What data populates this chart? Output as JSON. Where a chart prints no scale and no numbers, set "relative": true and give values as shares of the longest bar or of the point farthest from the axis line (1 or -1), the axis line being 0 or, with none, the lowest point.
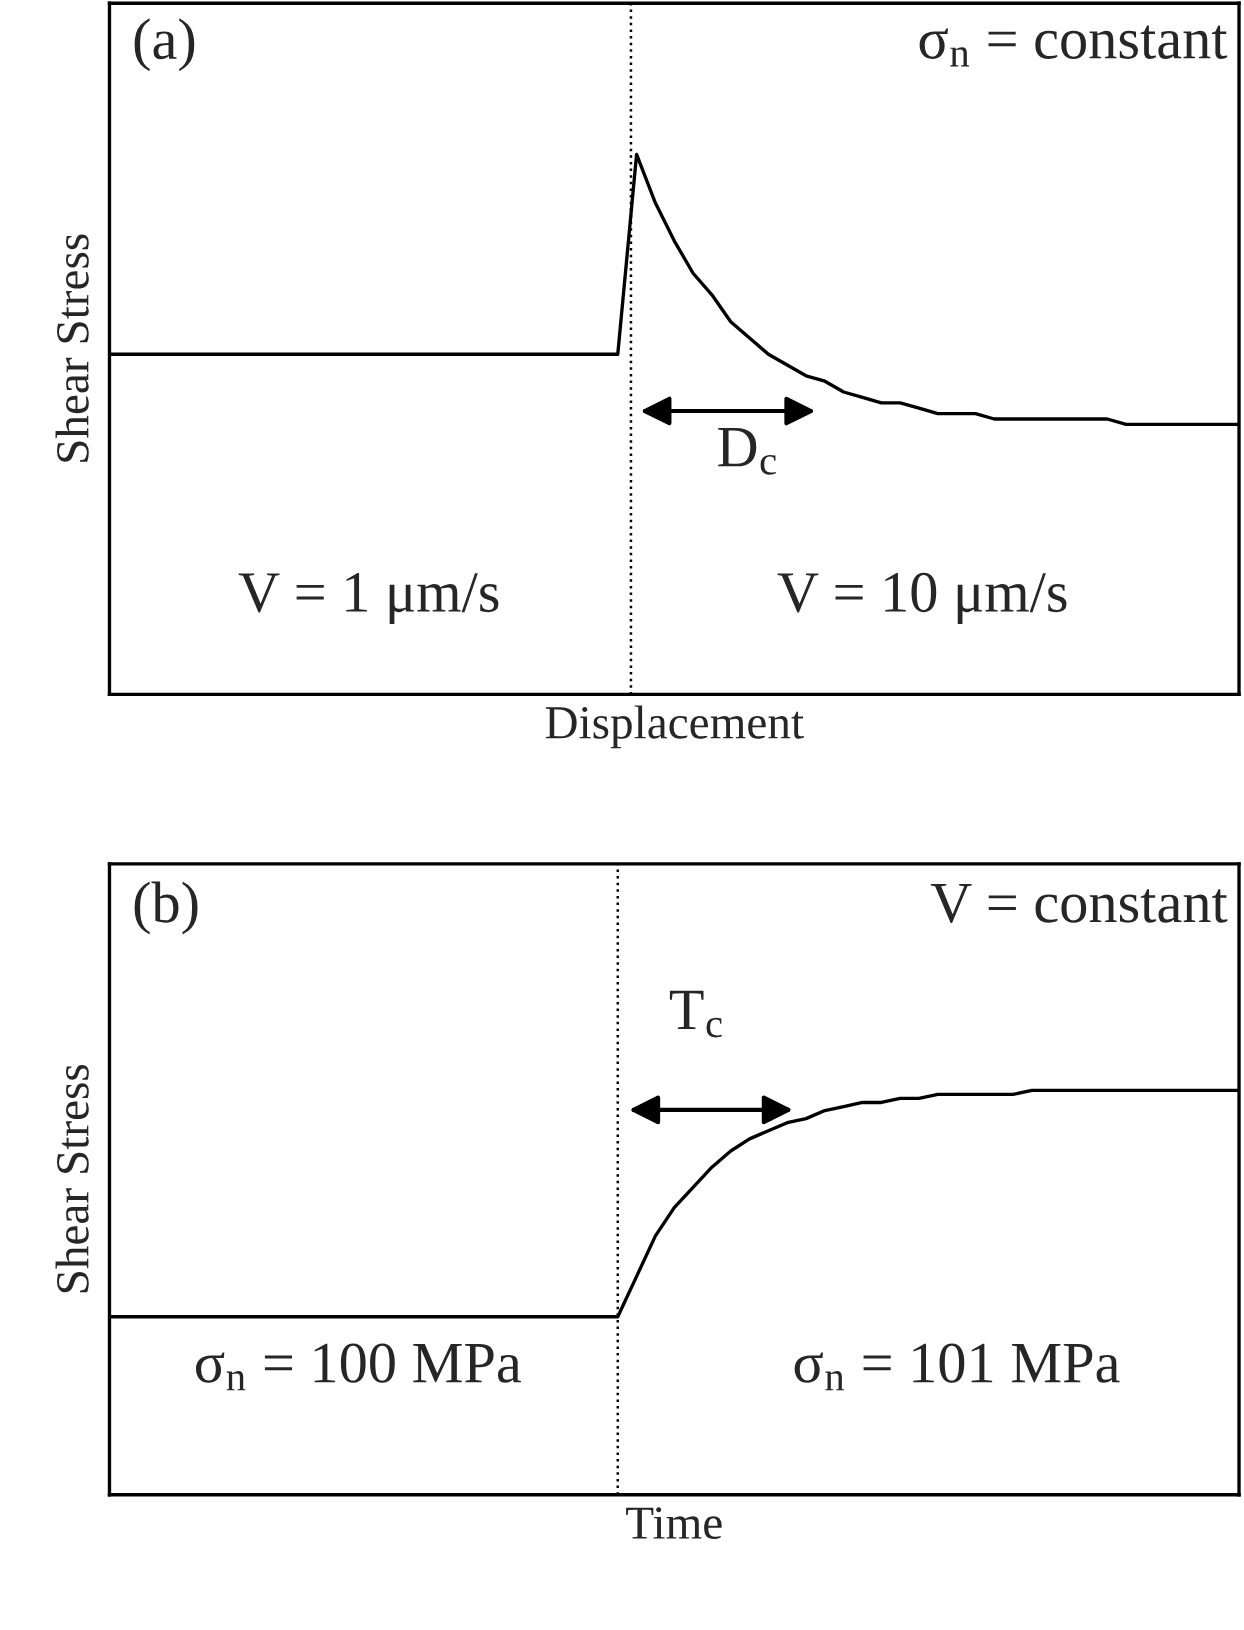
{
  "chart_data": [
    {
      "type": "line",
      "relative": true,
      "ylabel": "Shear Stress",
      "xlabel": "Displacement",
      "tick_labels": false,
      "legend": false,
      "marker": "none",
      "line_style": "solid",
      "categories": [
        null,
        null,
        null,
        null,
        null,
        null,
        null,
        null,
        null,
        null,
        null,
        null,
        null,
        null,
        null,
        null,
        null,
        null,
        null,
        null,
        null,
        null,
        null,
        null,
        null,
        null,
        null,
        null,
        null,
        null,
        null,
        null,
        null,
        null,
        null,
        null,
        null,
        null,
        null,
        null,
        null,
        null,
        null,
        null,
        null,
        null,
        null,
        null,
        null,
        null,
        null,
        null,
        null,
        null,
        null,
        null,
        null,
        null,
        null,
        null,
        null
      ],
      "series": [
        {
          "color": "#000000",
          "values": [
            0.63,
            0.63,
            0.63,
            0.63,
            0.63,
            0.63,
            0.63,
            0.63,
            0.63,
            0.63,
            0.63,
            0.63,
            0.63,
            0.63,
            0.63,
            0.63,
            0.63,
            0.63,
            0.63,
            0.63,
            0.63,
            0.63,
            0.63,
            0.63,
            0.63,
            0.63,
            0.63,
            0.63,
            1.0,
            0.91,
            0.84,
            0.78,
            0.74,
            0.69,
            0.66,
            0.63,
            0.61,
            0.59,
            0.58,
            0.56,
            0.55,
            0.54,
            0.54,
            0.53,
            0.52,
            0.52,
            0.52,
            0.51,
            0.51,
            0.51,
            0.51,
            0.51,
            0.51,
            0.51,
            0.5,
            0.5,
            0.5,
            0.5,
            0.5,
            0.5,
            0.5
          ]
        }
      ],
      "annotations": [
        "(a)",
        "σ$_{n}$ = constant",
        "V = 1 μm/s",
        "V = 10 μm/s",
        "D$_{c}$"
      ]
    },
    {
      "type": "line",
      "relative": true,
      "ylabel": "Shear Stress",
      "xlabel": "Time",
      "tick_labels": false,
      "legend": false,
      "marker": "none",
      "line_style": "solid",
      "categories": [
        null,
        null,
        null,
        null,
        null,
        null,
        null,
        null,
        null,
        null,
        null,
        null,
        null,
        null,
        null,
        null,
        null,
        null,
        null,
        null,
        null,
        null,
        null,
        null,
        null,
        null,
        null,
        null,
        null,
        null,
        null,
        null,
        null,
        null,
        null,
        null,
        null,
        null,
        null,
        null,
        null,
        null,
        null,
        null,
        null,
        null,
        null,
        null,
        null,
        null,
        null,
        null,
        null,
        null,
        null,
        null,
        null,
        null,
        null,
        null,
        null
      ],
      "series": [
        {
          "color": "#000000",
          "values": [
            0.44,
            0.44,
            0.44,
            0.44,
            0.44,
            0.44,
            0.44,
            0.44,
            0.44,
            0.44,
            0.44,
            0.44,
            0.44,
            0.44,
            0.44,
            0.44,
            0.44,
            0.44,
            0.44,
            0.44,
            0.44,
            0.44,
            0.44,
            0.44,
            0.44,
            0.44,
            0.44,
            0.44,
            0.54,
            0.64,
            0.71,
            0.76,
            0.81,
            0.85,
            0.88,
            0.9,
            0.92,
            0.93,
            0.95,
            0.96,
            0.97,
            0.97,
            0.98,
            0.98,
            0.99,
            0.99,
            0.99,
            0.99,
            0.99,
            1.0,
            1.0,
            1.0,
            1.0,
            1.0,
            1.0,
            1.0,
            1.0,
            1.0,
            1.0,
            1.0,
            1.0
          ]
        }
      ],
      "annotations": [
        "(b)",
        "V = constant",
        "σ$_{n}$ = 100 MPa",
        "σ$_{n}$ = 101 MPa",
        "T$_{c}$"
      ]
    }
  ]
}
